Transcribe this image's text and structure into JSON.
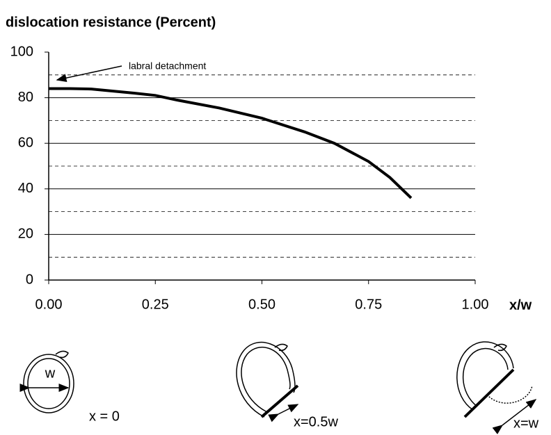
{
  "chart_data": {
    "type": "line",
    "title": "dislocation resistance (Percent)",
    "x_label": "x/w",
    "x": [
      0,
      0.05,
      0.1,
      0.2,
      0.25,
      0.3,
      0.4,
      0.5,
      0.6,
      0.67,
      0.75,
      0.8,
      0.85
    ],
    "values": [
      84,
      84,
      83.8,
      82,
      81,
      79,
      75.5,
      71,
      65,
      60,
      52,
      45,
      36
    ],
    "color": "#000000",
    "xlim": [
      0,
      1
    ],
    "xticks": [
      {
        "value": 0,
        "label": "0.00"
      },
      {
        "value": 0.25,
        "label": "0.25"
      },
      {
        "value": 0.5,
        "label": "0.50"
      },
      {
        "value": 0.75,
        "label": "0.75"
      },
      {
        "value": 1,
        "label": "1.00"
      }
    ],
    "ylim": [
      0,
      100
    ],
    "yticks": [
      0,
      20,
      40,
      60,
      80,
      100
    ],
    "minor_yticks": [
      10,
      30,
      50,
      70,
      90
    ],
    "grid": true,
    "annotation": "labral detachment"
  },
  "diagrams": [
    {
      "dimension": "w",
      "label": "x = 0"
    },
    {
      "label": "x=0.5w"
    },
    {
      "label": "x=w"
    }
  ]
}
